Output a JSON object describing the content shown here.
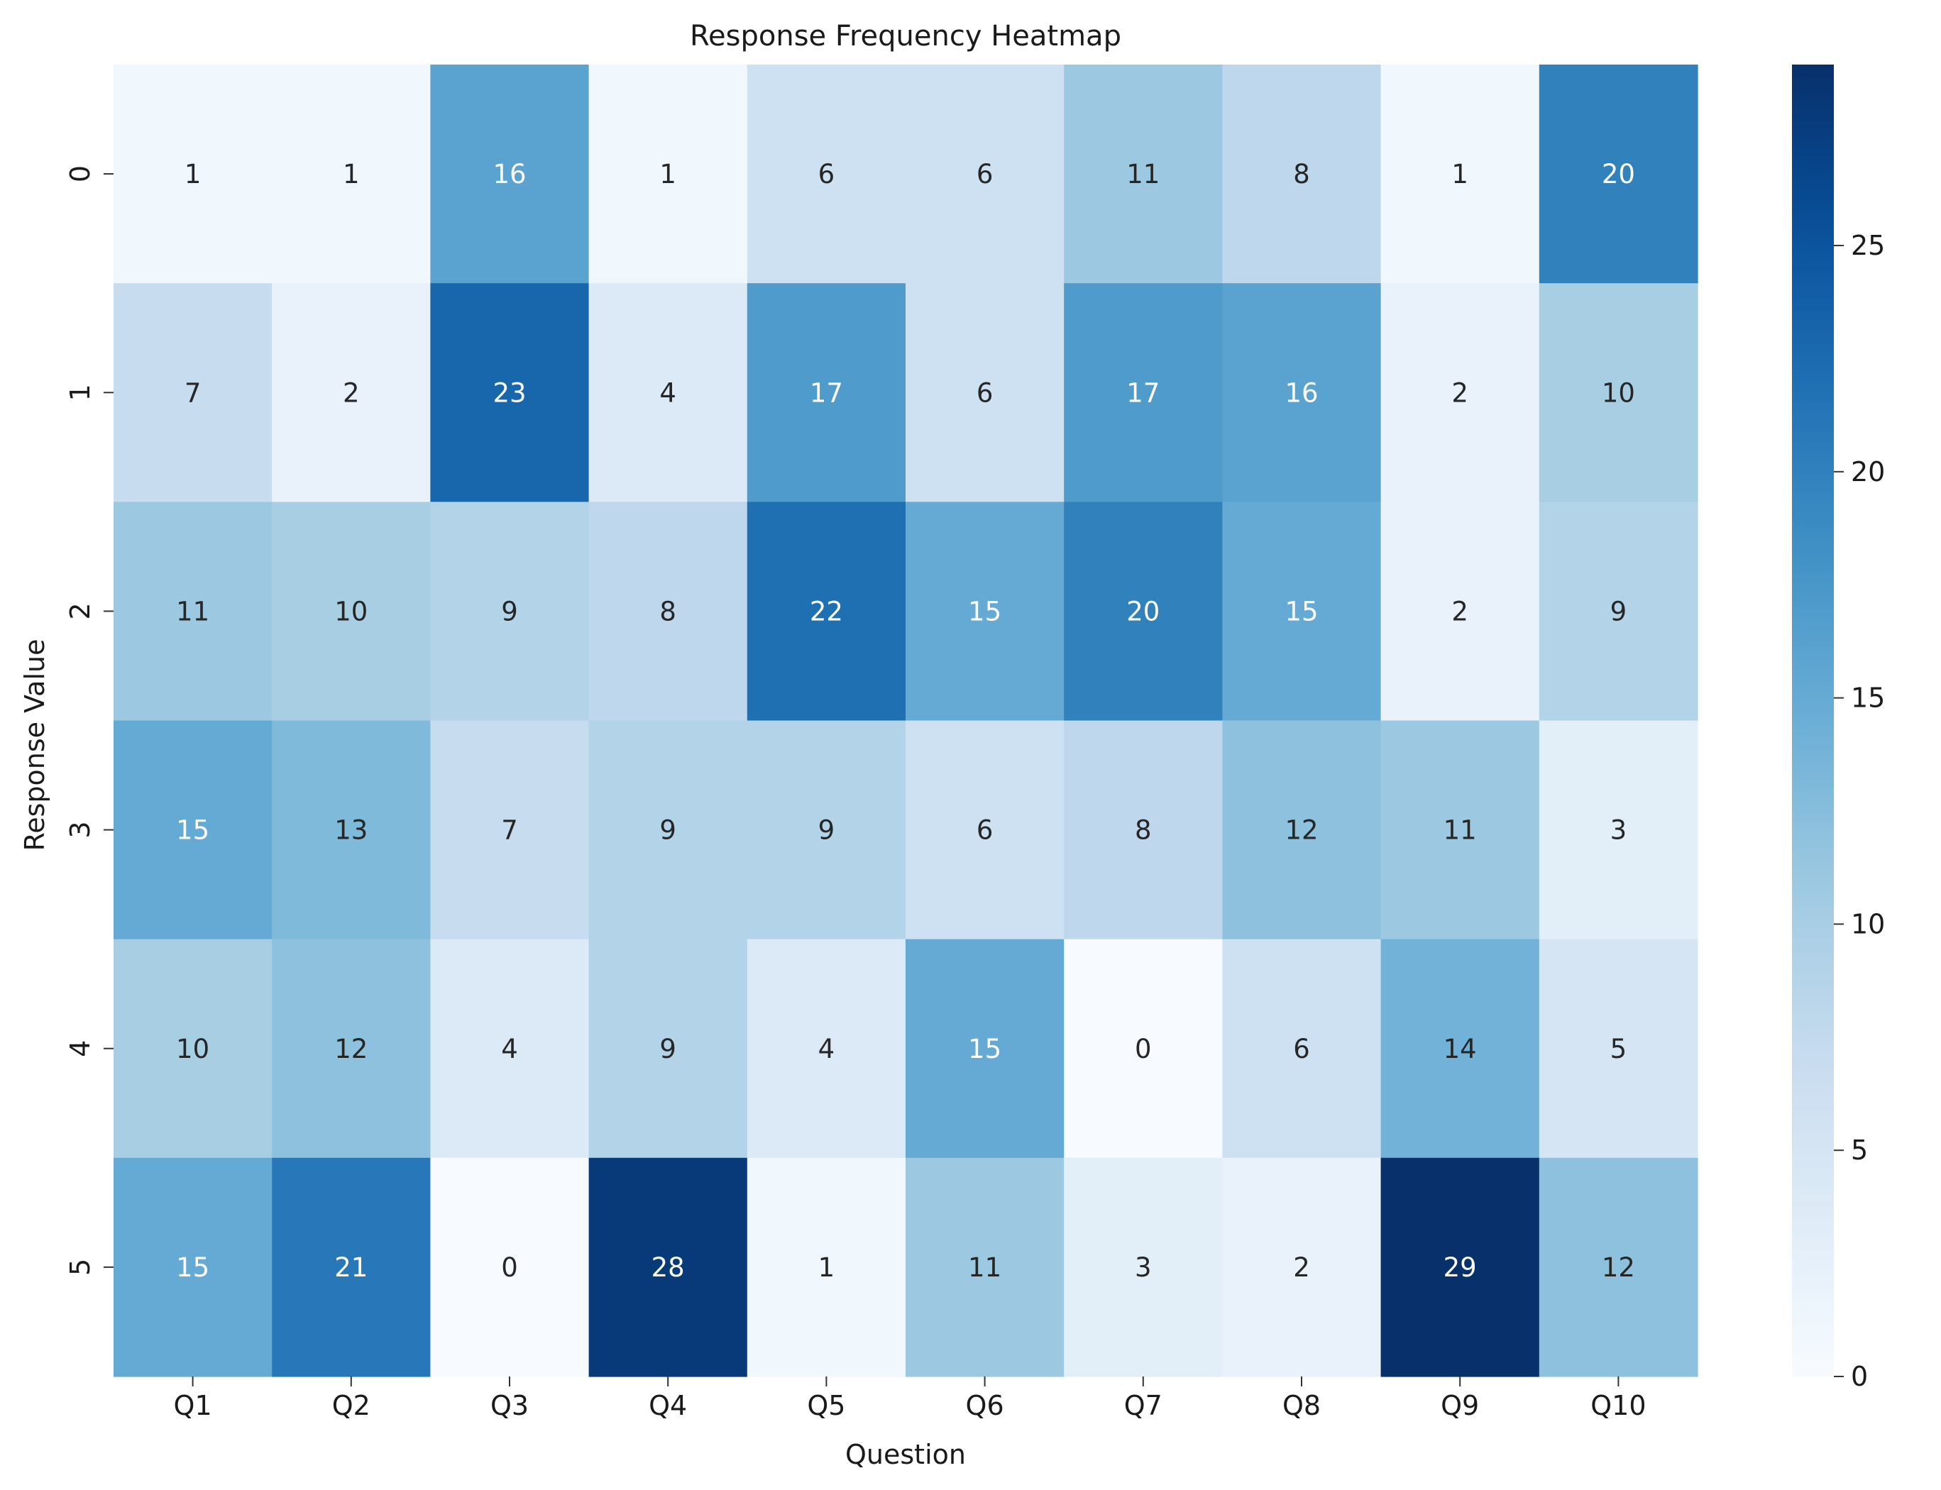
{
  "chart_data": {
    "type": "heatmap",
    "title": "Response Frequency Heatmap",
    "xlabel": "Question",
    "ylabel": "Response Value",
    "x_categories": [
      "Q1",
      "Q2",
      "Q3",
      "Q4",
      "Q5",
      "Q6",
      "Q7",
      "Q8",
      "Q9",
      "Q10"
    ],
    "y_categories": [
      "0",
      "1",
      "2",
      "3",
      "4",
      "5"
    ],
    "values": [
      [
        1,
        1,
        16,
        1,
        6,
        6,
        11,
        8,
        1,
        20
      ],
      [
        7,
        2,
        23,
        4,
        17,
        6,
        17,
        16,
        2,
        10
      ],
      [
        11,
        10,
        9,
        8,
        22,
        15,
        20,
        15,
        2,
        9
      ],
      [
        15,
        13,
        7,
        9,
        9,
        6,
        8,
        12,
        11,
        3
      ],
      [
        10,
        12,
        4,
        9,
        4,
        15,
        0,
        6,
        14,
        5
      ],
      [
        15,
        21,
        0,
        28,
        1,
        11,
        3,
        2,
        29,
        12
      ]
    ],
    "colorbar": {
      "min": 0,
      "max": 29,
      "ticks": [
        0,
        5,
        10,
        15,
        20,
        25
      ]
    },
    "colormap": "Blues",
    "annotations": true,
    "grid": false,
    "legend": "colorbar-right"
  }
}
